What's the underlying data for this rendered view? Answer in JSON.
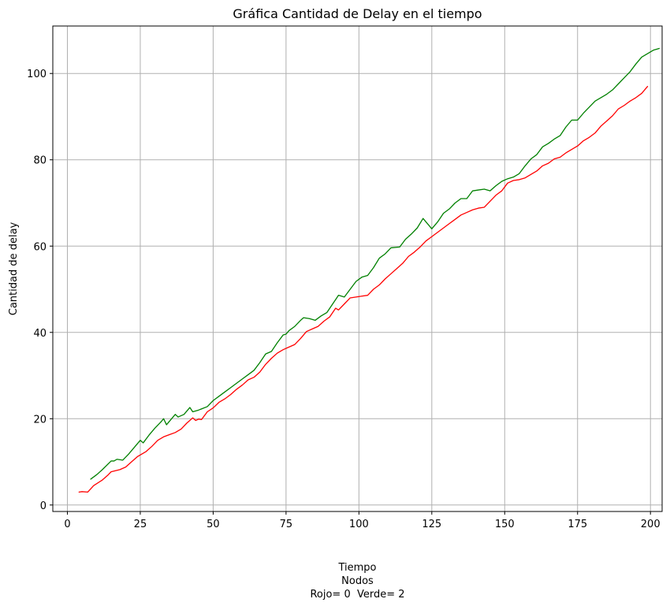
{
  "chart_data": {
    "type": "line",
    "title": "Gráfica Cantidad de Delay en el tiempo",
    "xlabel_lines": [
      "Tiempo",
      "Nodos",
      "Rojo= 0  Verde= 2"
    ],
    "ylabel": "Cantidad de delay",
    "xlim": [
      -5,
      204
    ],
    "ylim": [
      -1.5,
      111
    ],
    "xticks": [
      0,
      25,
      50,
      75,
      100,
      125,
      150,
      175,
      200
    ],
    "yticks": [
      0,
      20,
      40,
      60,
      80,
      100
    ],
    "grid": true,
    "series": [
      {
        "color": "#ff0000",
        "points": [
          [
            4,
            3.0
          ],
          [
            5,
            3.1
          ],
          [
            7,
            3.0
          ],
          [
            9,
            4.5
          ],
          [
            12,
            5.8
          ],
          [
            14,
            7.0
          ],
          [
            15,
            7.7
          ],
          [
            18,
            8.2
          ],
          [
            20,
            8.8
          ],
          [
            22,
            10.0
          ],
          [
            24,
            11.2
          ],
          [
            27,
            12.4
          ],
          [
            29,
            13.6
          ],
          [
            31,
            15.0
          ],
          [
            33,
            15.8
          ],
          [
            35,
            16.3
          ],
          [
            37,
            16.8
          ],
          [
            39,
            17.6
          ],
          [
            41,
            19.0
          ],
          [
            43,
            20.2
          ],
          [
            44,
            19.6
          ],
          [
            45,
            19.9
          ],
          [
            46,
            19.8
          ],
          [
            48,
            21.6
          ],
          [
            50,
            22.5
          ],
          [
            52,
            23.8
          ],
          [
            54,
            24.6
          ],
          [
            56,
            25.6
          ],
          [
            58,
            26.8
          ],
          [
            60,
            27.8
          ],
          [
            62,
            29.0
          ],
          [
            64,
            29.6
          ],
          [
            66,
            30.8
          ],
          [
            68,
            32.6
          ],
          [
            70,
            34.0
          ],
          [
            72,
            35.2
          ],
          [
            74,
            36.0
          ],
          [
            76,
            36.6
          ],
          [
            78,
            37.2
          ],
          [
            80,
            38.6
          ],
          [
            82,
            40.2
          ],
          [
            84,
            40.8
          ],
          [
            86,
            41.4
          ],
          [
            88,
            42.6
          ],
          [
            90,
            43.6
          ],
          [
            92,
            45.6
          ],
          [
            93,
            45.2
          ],
          [
            95,
            46.6
          ],
          [
            97,
            48.0
          ],
          [
            99,
            48.2
          ],
          [
            101,
            48.4
          ],
          [
            103,
            48.6
          ],
          [
            105,
            50.0
          ],
          [
            107,
            51.0
          ],
          [
            109,
            52.4
          ],
          [
            111,
            53.6
          ],
          [
            113,
            54.8
          ],
          [
            115,
            56.0
          ],
          [
            117,
            57.6
          ],
          [
            119,
            58.6
          ],
          [
            121,
            59.8
          ],
          [
            123,
            61.2
          ],
          [
            125,
            62.2
          ],
          [
            127,
            63.2
          ],
          [
            129,
            64.2
          ],
          [
            131,
            65.2
          ],
          [
            133,
            66.2
          ],
          [
            135,
            67.2
          ],
          [
            137,
            67.8
          ],
          [
            139,
            68.4
          ],
          [
            141,
            68.8
          ],
          [
            143,
            69.0
          ],
          [
            145,
            70.4
          ],
          [
            147,
            71.8
          ],
          [
            149,
            72.8
          ],
          [
            151,
            74.6
          ],
          [
            153,
            75.2
          ],
          [
            155,
            75.4
          ],
          [
            157,
            75.8
          ],
          [
            159,
            76.6
          ],
          [
            161,
            77.4
          ],
          [
            163,
            78.6
          ],
          [
            165,
            79.2
          ],
          [
            167,
            80.2
          ],
          [
            169,
            80.6
          ],
          [
            171,
            81.6
          ],
          [
            173,
            82.4
          ],
          [
            175,
            83.2
          ],
          [
            177,
            84.4
          ],
          [
            179,
            85.2
          ],
          [
            181,
            86.2
          ],
          [
            183,
            87.8
          ],
          [
            185,
            89.0
          ],
          [
            187,
            90.2
          ],
          [
            189,
            91.8
          ],
          [
            191,
            92.6
          ],
          [
            193,
            93.6
          ],
          [
            195,
            94.4
          ],
          [
            197,
            95.4
          ],
          [
            199,
            97.0
          ]
        ]
      },
      {
        "color": "#008000",
        "points": [
          [
            8,
            6.0
          ],
          [
            10,
            7.0
          ],
          [
            12,
            8.2
          ],
          [
            15,
            10.2
          ],
          [
            16,
            10.2
          ],
          [
            17,
            10.6
          ],
          [
            19,
            10.4
          ],
          [
            21,
            11.8
          ],
          [
            23,
            13.4
          ],
          [
            25,
            15.0
          ],
          [
            26,
            14.4
          ],
          [
            28,
            16.2
          ],
          [
            30,
            17.8
          ],
          [
            32,
            19.2
          ],
          [
            33,
            20.0
          ],
          [
            34,
            18.6
          ],
          [
            35,
            19.4
          ],
          [
            37,
            21.0
          ],
          [
            38,
            20.4
          ],
          [
            40,
            21.0
          ],
          [
            42,
            22.6
          ],
          [
            43,
            21.6
          ],
          [
            45,
            22.0
          ],
          [
            48,
            22.8
          ],
          [
            50,
            24.2
          ],
          [
            52,
            25.2
          ],
          [
            54,
            26.2
          ],
          [
            56,
            27.2
          ],
          [
            58,
            28.2
          ],
          [
            60,
            29.2
          ],
          [
            62,
            30.2
          ],
          [
            64,
            31.2
          ],
          [
            66,
            33.0
          ],
          [
            68,
            35.0
          ],
          [
            70,
            35.6
          ],
          [
            72,
            37.6
          ],
          [
            74,
            39.4
          ],
          [
            75,
            39.6
          ],
          [
            76,
            40.4
          ],
          [
            78,
            41.4
          ],
          [
            80,
            42.8
          ],
          [
            81,
            43.4
          ],
          [
            83,
            43.2
          ],
          [
            85,
            42.8
          ],
          [
            87,
            43.8
          ],
          [
            89,
            44.6
          ],
          [
            91,
            46.6
          ],
          [
            93,
            48.6
          ],
          [
            95,
            48.2
          ],
          [
            97,
            50.0
          ],
          [
            99,
            51.8
          ],
          [
            101,
            52.8
          ],
          [
            103,
            53.2
          ],
          [
            105,
            55.0
          ],
          [
            107,
            57.2
          ],
          [
            109,
            58.2
          ],
          [
            111,
            59.6
          ],
          [
            114,
            59.8
          ],
          [
            116,
            61.6
          ],
          [
            118,
            62.8
          ],
          [
            120,
            64.2
          ],
          [
            122,
            66.4
          ],
          [
            125,
            64.0
          ],
          [
            127,
            65.6
          ],
          [
            129,
            67.6
          ],
          [
            131,
            68.6
          ],
          [
            133,
            70.0
          ],
          [
            135,
            71.0
          ],
          [
            137,
            71.0
          ],
          [
            139,
            72.8
          ],
          [
            141,
            73.0
          ],
          [
            143,
            73.2
          ],
          [
            145,
            72.8
          ],
          [
            147,
            74.0
          ],
          [
            149,
            75.0
          ],
          [
            151,
            75.6
          ],
          [
            153,
            76.0
          ],
          [
            155,
            76.8
          ],
          [
            157,
            78.6
          ],
          [
            159,
            80.2
          ],
          [
            161,
            81.2
          ],
          [
            163,
            83.0
          ],
          [
            165,
            83.8
          ],
          [
            167,
            84.8
          ],
          [
            169,
            85.6
          ],
          [
            171,
            87.6
          ],
          [
            173,
            89.2
          ],
          [
            175,
            89.2
          ],
          [
            177,
            90.8
          ],
          [
            179,
            92.2
          ],
          [
            181,
            93.6
          ],
          [
            183,
            94.4
          ],
          [
            185,
            95.2
          ],
          [
            187,
            96.2
          ],
          [
            189,
            97.6
          ],
          [
            191,
            99.0
          ],
          [
            193,
            100.4
          ],
          [
            195,
            102.2
          ],
          [
            197,
            103.8
          ],
          [
            199,
            104.6
          ],
          [
            201,
            105.4
          ],
          [
            203,
            105.8
          ]
        ]
      }
    ]
  }
}
